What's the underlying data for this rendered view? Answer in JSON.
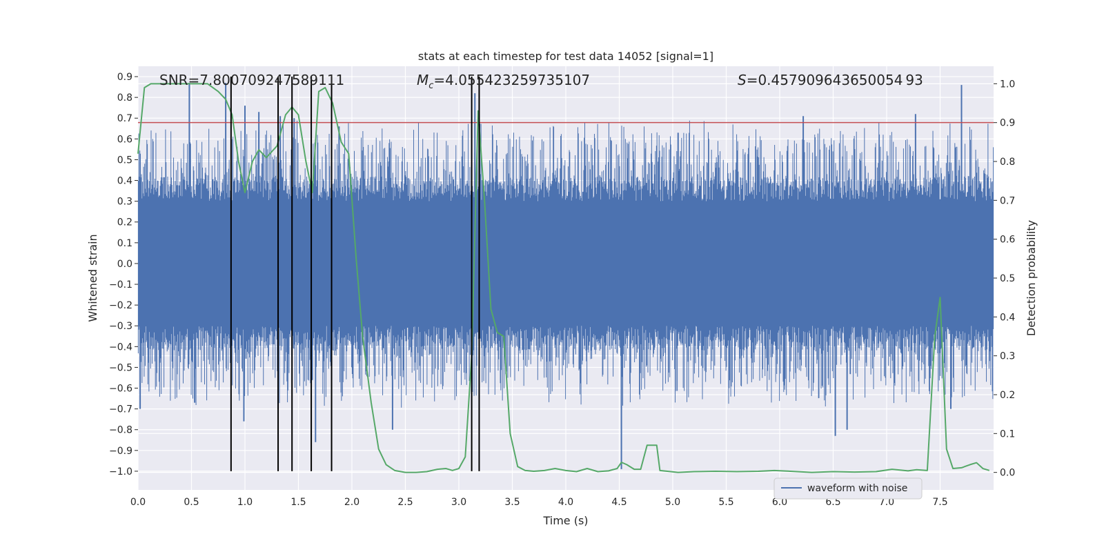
{
  "chart_data": {
    "type": "line",
    "title": "stats at each timestep for test data 14052 [signal=1]",
    "xlabel": "Time (s)",
    "ylabel_left": "Whitened strain",
    "ylabel_right": "Detection probability",
    "xlim": [
      0.0,
      8.0
    ],
    "ylim_left": [
      -1.09,
      0.95
    ],
    "ylim_right": [
      -0.045,
      1.045
    ],
    "xticks": [
      "0.0",
      "0.5",
      "1.0",
      "1.5",
      "2.0",
      "2.5",
      "3.0",
      "3.5",
      "4.0",
      "4.5",
      "5.0",
      "5.5",
      "6.0",
      "6.5",
      "7.0",
      "7.5"
    ],
    "yticks_left": [
      "0.9",
      "0.8",
      "0.7",
      "0.6",
      "0.5",
      "0.4",
      "0.3",
      "0.2",
      "0.1",
      "0.0",
      "−0.1",
      "−0.2",
      "−0.3",
      "−0.4",
      "−0.5",
      "−0.6",
      "−0.7",
      "−0.8",
      "−0.9",
      "−1.0"
    ],
    "yticks_right": [
      "1.0",
      "0.9",
      "0.8",
      "0.7",
      "0.6",
      "0.5",
      "0.4",
      "0.3",
      "0.2",
      "0.1",
      "0.0"
    ],
    "grid": true,
    "annotations": {
      "snr": "SNR=7.800709247589111",
      "mc": "=4.055423259735107",
      "mc_symbol": "M",
      "mc_sub": "c",
      "s": "=0.457909643650054 93",
      "s_symbol": "S"
    },
    "threshold": {
      "value": 0.9,
      "axis": "right",
      "color": "#c44e52"
    },
    "event_lines": {
      "times": [
        0.87,
        1.31,
        1.44,
        1.62,
        1.81,
        3.12,
        3.19
      ],
      "y_from": -1.0,
      "y_to": 0.9,
      "color": "#000000"
    },
    "waveform": {
      "name": "waveform with noise",
      "color": "#4c72b0",
      "sample_count": 1600,
      "core_amplitude": 0.3,
      "spikes_up": [
        [
          0.48,
          0.87
        ],
        [
          0.82,
          0.87
        ],
        [
          1.0,
          0.76
        ],
        [
          1.13,
          0.73
        ],
        [
          1.33,
          0.71
        ],
        [
          1.46,
          0.7
        ],
        [
          1.88,
          0.66
        ],
        [
          3.15,
          0.82
        ],
        [
          5.05,
          0.63
        ],
        [
          6.22,
          0.71
        ],
        [
          7.27,
          0.72
        ],
        [
          7.7,
          0.86
        ]
      ],
      "spikes_down": [
        [
          0.02,
          -0.7
        ],
        [
          0.53,
          -0.67
        ],
        [
          0.99,
          -0.76
        ],
        [
          1.31,
          -0.7
        ],
        [
          1.66,
          -0.86
        ],
        [
          2.38,
          -0.8
        ],
        [
          4.52,
          -0.99
        ],
        [
          6.52,
          -0.83
        ],
        [
          6.63,
          -0.8
        ],
        [
          7.6,
          -0.7
        ]
      ]
    },
    "detection_probability": {
      "color": "#55a868",
      "x": [
        0.0,
        0.06,
        0.12,
        0.2,
        0.4,
        0.65,
        0.75,
        0.82,
        0.88,
        0.94,
        1.0,
        1.07,
        1.13,
        1.2,
        1.3,
        1.38,
        1.44,
        1.5,
        1.57,
        1.63,
        1.69,
        1.75,
        1.82,
        1.9,
        1.97,
        2.04,
        2.1,
        2.18,
        2.25,
        2.32,
        2.4,
        2.5,
        2.6,
        2.7,
        2.8,
        2.88,
        2.94,
        3.0,
        3.06,
        3.12,
        3.18,
        3.24,
        3.3,
        3.36,
        3.42,
        3.48,
        3.55,
        3.62,
        3.7,
        3.8,
        3.9,
        4.0,
        4.1,
        4.2,
        4.3,
        4.4,
        4.48,
        4.52,
        4.57,
        4.64,
        4.7,
        4.76,
        4.8,
        4.85,
        4.88,
        4.95,
        5.05,
        5.2,
        5.4,
        5.6,
        5.8,
        5.95,
        6.1,
        6.3,
        6.5,
        6.7,
        6.9,
        7.05,
        7.2,
        7.28,
        7.38,
        7.45,
        7.5,
        7.56,
        7.62,
        7.7,
        7.78,
        7.84,
        7.9,
        7.96
      ],
      "y": [
        0.82,
        0.99,
        1.0,
        1.0,
        1.0,
        1.0,
        0.98,
        0.96,
        0.92,
        0.8,
        0.72,
        0.8,
        0.83,
        0.81,
        0.84,
        0.92,
        0.94,
        0.92,
        0.8,
        0.72,
        0.98,
        0.99,
        0.95,
        0.85,
        0.82,
        0.55,
        0.35,
        0.18,
        0.06,
        0.02,
        0.005,
        0.0,
        0.0,
        0.002,
        0.008,
        0.01,
        0.005,
        0.01,
        0.04,
        0.3,
        0.93,
        0.7,
        0.42,
        0.36,
        0.35,
        0.1,
        0.015,
        0.005,
        0.003,
        0.005,
        0.01,
        0.005,
        0.002,
        0.01,
        0.002,
        0.004,
        0.01,
        0.026,
        0.02,
        0.008,
        0.008,
        0.07,
        0.07,
        0.07,
        0.005,
        0.003,
        0.0,
        0.002,
        0.003,
        0.002,
        0.003,
        0.005,
        0.003,
        0.0,
        0.002,
        0.001,
        0.002,
        0.008,
        0.004,
        0.007,
        0.005,
        0.35,
        0.45,
        0.06,
        0.01,
        0.012,
        0.02,
        0.025,
        0.01,
        0.005
      ]
    }
  }
}
